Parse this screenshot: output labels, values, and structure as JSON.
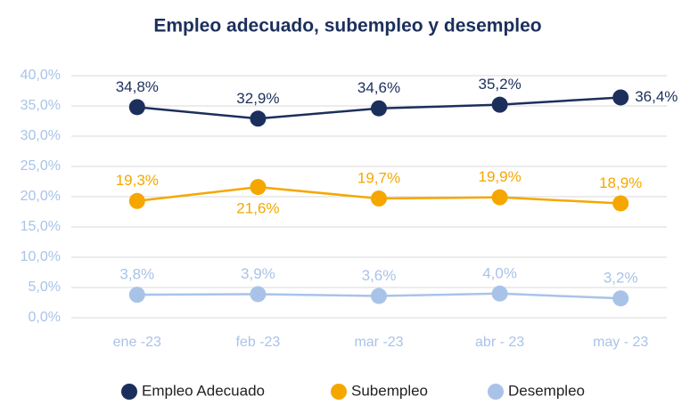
{
  "chart_data": {
    "type": "line",
    "title": "Empleo adecuado, subempleo y desempleo",
    "categories": [
      "ene -23",
      "feb -23",
      "mar -23",
      "abr - 23",
      "may - 23"
    ],
    "series": [
      {
        "name": "Empleo Adecuado",
        "color": "#1c2f5c",
        "values": [
          34.8,
          32.9,
          34.6,
          35.2,
          36.4
        ],
        "value_labels": [
          "34,8%",
          "32,9%",
          "34,6%",
          "35,2%",
          "36,4%"
        ]
      },
      {
        "name": "Subempleo",
        "color": "#f5a700",
        "values": [
          19.3,
          21.6,
          19.7,
          19.9,
          18.9
        ],
        "value_labels": [
          "19,3%",
          "21,6%",
          "19,7%",
          "19,9%",
          "18,9%"
        ]
      },
      {
        "name": "Desempleo",
        "color": "#a9c3e8",
        "values": [
          3.8,
          3.9,
          3.6,
          4.0,
          3.2
        ],
        "value_labels": [
          "3,8%",
          "3,9%",
          "3,6%",
          "4,0%",
          "3,2%"
        ]
      }
    ],
    "ylim": [
      0,
      40
    ],
    "yticks": [
      {
        "value": 0,
        "label": "0,0%"
      },
      {
        "value": 5,
        "label": "5,0%"
      },
      {
        "value": 10,
        "label": "10,0%"
      },
      {
        "value": 15,
        "label": "15,0%"
      },
      {
        "value": 20,
        "label": "20,0%"
      },
      {
        "value": 25,
        "label": "25,0%"
      },
      {
        "value": 30,
        "label": "30,0%"
      },
      {
        "value": 35,
        "label": "35,0%"
      },
      {
        "value": 40,
        "label": "40,0%"
      }
    ],
    "grid": true,
    "legend": "bottom"
  }
}
